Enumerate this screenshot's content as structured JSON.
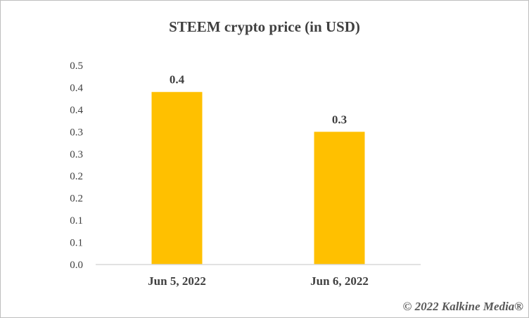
{
  "chart_data": {
    "type": "bar",
    "title": "STEEM crypto price (in USD)",
    "categories": [
      "Jun 5, 2022",
      "Jun 6, 2022"
    ],
    "values": [
      0.4,
      0.3
    ],
    "actual_values": [
      0.39,
      0.3
    ],
    "data_labels": [
      "0.4",
      "0.3"
    ],
    "xlabel": "",
    "ylabel": "",
    "ylim": [
      0,
      0.45
    ],
    "y_tick_values": [
      0,
      0.05,
      0.1,
      0.15,
      0.2,
      0.25,
      0.3,
      0.35,
      0.4,
      0.45
    ],
    "y_tick_labels": [
      "0.0",
      "0.1",
      "0.1",
      "0.2",
      "0.2",
      "0.3",
      "0.3",
      "0.4",
      "0.4",
      "0.5"
    ],
    "grid": false,
    "legend": "none",
    "bar_color": "#ffc000"
  },
  "watermark": "© 2022 Kalkine Media®"
}
